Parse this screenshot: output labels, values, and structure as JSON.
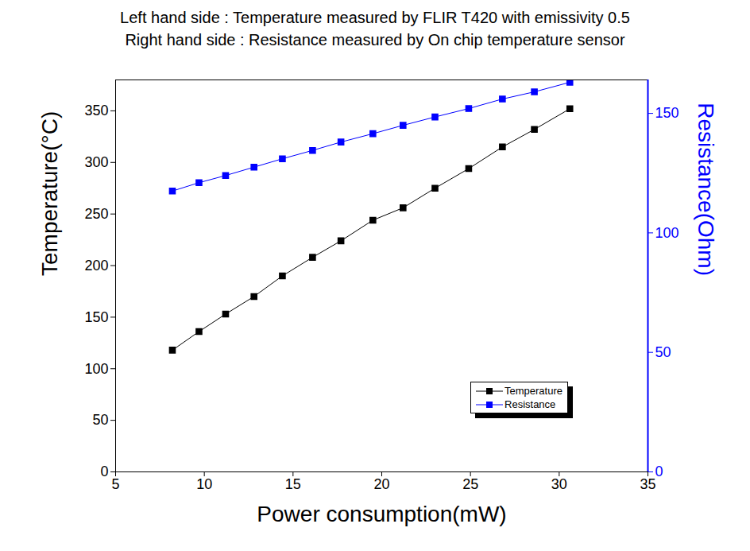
{
  "chart_data": {
    "type": "line",
    "title": "Left hand side : Temperature measured by FLIR T420 with emissivity 0.5",
    "subtitle": "Right hand side : Resistance measured by On chip temperature sensor",
    "x_label": "Power consumption(mW)",
    "y_label": "Temperature(°C)",
    "y2_label": "Resistance(Ohm)",
    "x": [
      8.2,
      9.7,
      11.2,
      12.8,
      14.4,
      16.1,
      17.7,
      19.5,
      21.2,
      23.0,
      24.9,
      26.8,
      28.6,
      30.6
    ],
    "series": [
      {
        "name": "Temperature",
        "color": "#000000",
        "marker": "square",
        "values": [
          118,
          136,
          153,
          170,
          190,
          208,
          224,
          244,
          256,
          275,
          294,
          315,
          332,
          352
        ]
      },
      {
        "name": "Resistance",
        "color": "#0000ff",
        "marker": "square",
        "axis": "y2",
        "values": [
          117.5,
          121,
          124,
          127.5,
          131,
          134.5,
          138,
          141.5,
          145,
          148.5,
          152,
          156,
          159,
          163
        ]
      }
    ],
    "xlim": [
      5,
      35
    ],
    "xticks": [
      5,
      10,
      15,
      20,
      25,
      30,
      35
    ],
    "ylim": [
      0,
      380
    ],
    "yticks": [
      0,
      50,
      100,
      150,
      200,
      250,
      300,
      350
    ],
    "y2lim": [
      0,
      164
    ],
    "y2ticks": [
      0,
      50,
      100,
      150
    ],
    "legend": "lower right",
    "grid": false
  }
}
